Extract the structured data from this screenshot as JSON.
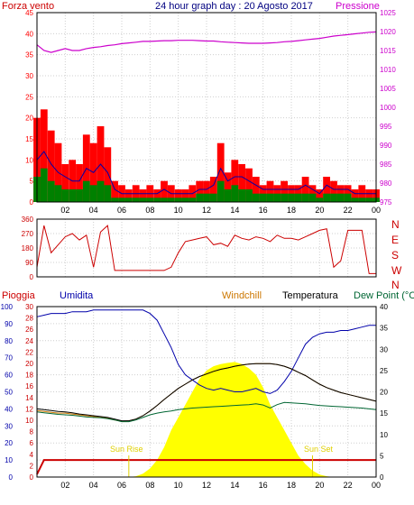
{
  "title": "24 hour graph day : 20 Agosto 2017",
  "colors": {
    "wind_label": "#cc0000",
    "pressure": "#cc00cc",
    "gust": "#ff0000",
    "wind_avg": "#0000aa",
    "wind_green": "#008000",
    "direction": "#cc0000",
    "rain": "#cc0000",
    "humidity": "#0000aa",
    "windchill": "#cc7700",
    "temperature": "#000000",
    "dewpoint": "#006633",
    "solar": "#ffff00",
    "sun_label": "#e0d000",
    "grid": "#cfcfcf"
  },
  "hours_ticks": [
    "02",
    "04",
    "06",
    "08",
    "10",
    "12",
    "14",
    "16",
    "18",
    "20",
    "22",
    "00"
  ],
  "chart_data": [
    {
      "type": "line",
      "id": "wind",
      "title": "24 hour graph day : 20 Agosto 2017",
      "left_axis_label": "Forza vento",
      "right_axis_label": "Pressione",
      "ylim_left": [
        0,
        45
      ],
      "left_ticks": [
        0,
        5,
        10,
        15,
        20,
        25,
        30,
        35,
        40,
        45
      ],
      "ylim_right": [
        975,
        1025
      ],
      "right_ticks": [
        975,
        980,
        985,
        990,
        995,
        1000,
        1005,
        1010,
        1015,
        1020,
        1025
      ],
      "grid": true,
      "x_hours": [
        0,
        0.5,
        1,
        1.5,
        2,
        2.5,
        3,
        3.5,
        4,
        4.5,
        5,
        5.5,
        6,
        6.5,
        7,
        7.5,
        8,
        8.5,
        9,
        9.5,
        10,
        10.5,
        11,
        11.5,
        12,
        12.5,
        13,
        13.5,
        14,
        14.5,
        15,
        15.5,
        16,
        16.5,
        17,
        17.5,
        18,
        18.5,
        19,
        19.5,
        20,
        20.5,
        21,
        21.5,
        22,
        22.5,
        23,
        23.5,
        24
      ],
      "series": [
        {
          "name": "Pressione",
          "axis": "right",
          "values": [
            1016.5,
            1015,
            1014.5,
            1015,
            1015.5,
            1015,
            1015,
            1015.5,
            1015.8,
            1016,
            1016.3,
            1016.5,
            1016.8,
            1017,
            1017.2,
            1017.4,
            1017.4,
            1017.5,
            1017.6,
            1017.6,
            1017.7,
            1017.7,
            1017.7,
            1017.6,
            1017.5,
            1017.5,
            1017.3,
            1017.2,
            1017.1,
            1017,
            1016.9,
            1016.9,
            1016.9,
            1017,
            1017.1,
            1017.3,
            1017.4,
            1017.6,
            1017.8,
            1018,
            1018.2,
            1018.5,
            1018.8,
            1019,
            1019.2,
            1019.4,
            1019.6,
            1019.8,
            1019.9
          ]
        },
        {
          "values": [
            20,
            22,
            17,
            14,
            9,
            10,
            9,
            16,
            14,
            18,
            13,
            5,
            4,
            3,
            4,
            3,
            4,
            3,
            5,
            4,
            3,
            3,
            4,
            5,
            5,
            6,
            14,
            7,
            10,
            9,
            8,
            6,
            4,
            5,
            4,
            5,
            4,
            4,
            6,
            4,
            3,
            6,
            5,
            4,
            4,
            3,
            4,
            3,
            3
          ]
        },
        {
          "values": [
            10,
            12,
            9,
            7,
            6,
            5,
            5,
            8,
            7,
            9,
            7,
            3,
            2,
            2,
            2,
            2,
            2,
            2,
            3,
            2,
            2,
            2,
            2,
            3,
            3,
            4,
            8,
            5,
            6,
            6,
            5,
            4,
            3,
            3,
            3,
            3,
            3,
            3,
            4,
            3,
            2,
            4,
            3,
            3,
            3,
            2,
            2,
            2,
            2
          ]
        },
        {
          "values": [
            6,
            8,
            5,
            4,
            3,
            3,
            3,
            5,
            4,
            5,
            4,
            1,
            1,
            1,
            1,
            1,
            1,
            1,
            1,
            1,
            1,
            1,
            1,
            2,
            2,
            2,
            5,
            3,
            4,
            3,
            3,
            2,
            2,
            2,
            2,
            2,
            2,
            2,
            2,
            2,
            1,
            2,
            2,
            2,
            2,
            1,
            1,
            1,
            1
          ]
        }
      ]
    },
    {
      "type": "line",
      "id": "direction",
      "right_axis_label": "N W S E N",
      "ylim": [
        0,
        360
      ],
      "left_ticks": [
        0,
        90,
        180,
        270,
        360
      ],
      "compass_letters": [
        "N",
        "W",
        "S",
        "E",
        "N"
      ],
      "grid": true,
      "x_hours": [
        0,
        0.5,
        1,
        1.5,
        2,
        2.5,
        3,
        3.5,
        4,
        4.5,
        5,
        5.5,
        6,
        6.5,
        7,
        7.5,
        8,
        8.5,
        9,
        9.5,
        10,
        10.5,
        11,
        11.5,
        12,
        12.5,
        13,
        13.5,
        14,
        14.5,
        15,
        15.5,
        16,
        16.5,
        17,
        17.5,
        18,
        18.5,
        19,
        19.5,
        20,
        20.5,
        21,
        21.5,
        22,
        22.5,
        23,
        23.5,
        24
      ],
      "series": [
        {
          "values": [
            60,
            320,
            150,
            200,
            250,
            270,
            230,
            260,
            60,
            280,
            320,
            40,
            40,
            40,
            40,
            40,
            40,
            40,
            40,
            60,
            150,
            220,
            230,
            240,
            250,
            200,
            210,
            190,
            260,
            240,
            230,
            250,
            240,
            220,
            260,
            240,
            240,
            230,
            250,
            270,
            290,
            300,
            60,
            100,
            290,
            290,
            290,
            20,
            20
          ]
        }
      ]
    },
    {
      "type": "line",
      "id": "climate",
      "left_axis_labels": [
        "Pioggia",
        "Umidita"
      ],
      "series_labels": [
        "Windchill",
        "Temperatura",
        "Dew Point (°C"
      ],
      "ylim_humidity": [
        0,
        100
      ],
      "humidity_ticks": [
        0,
        10,
        20,
        30,
        40,
        50,
        60,
        70,
        80,
        90,
        100
      ],
      "ylim_rain": [
        0,
        30
      ],
      "rain_ticks": [
        0,
        2,
        4,
        6,
        8,
        10,
        12,
        14,
        16,
        18,
        20,
        22,
        24,
        26,
        28,
        30
      ],
      "ylim_temp": [
        0,
        40
      ],
      "temp_ticks": [
        0,
        5,
        10,
        15,
        20,
        25,
        30,
        35,
        40
      ],
      "annotations": {
        "sunrise": "Sun Rise",
        "sunset": "Sun Set"
      },
      "sunrise_hour": 6.5,
      "sunset_hour": 19.5,
      "grid": true,
      "x_hours": [
        0,
        0.5,
        1,
        1.5,
        2,
        2.5,
        3,
        3.5,
        4,
        4.5,
        5,
        5.5,
        6,
        6.5,
        7,
        7.5,
        8,
        8.5,
        9,
        9.5,
        10,
        10.5,
        11,
        11.5,
        12,
        12.5,
        13,
        13.5,
        14,
        14.5,
        15,
        15.5,
        16,
        16.5,
        17,
        17.5,
        18,
        18.5,
        19,
        19.5,
        20,
        20.5,
        21,
        21.5,
        22,
        22.5,
        23,
        23.5,
        24
      ],
      "series": [
        {
          "name": "Umidita",
          "values": [
            94,
            95,
            96,
            96,
            96,
            97,
            97,
            97,
            98,
            98,
            98,
            98,
            98,
            98,
            98,
            98,
            96,
            92,
            84,
            76,
            66,
            60,
            57,
            54,
            52,
            51,
            52,
            51,
            50,
            50,
            51,
            52,
            50,
            49,
            51,
            56,
            62,
            70,
            78,
            82,
            84,
            85,
            85,
            86,
            86,
            87,
            88,
            89,
            89
          ]
        },
        {
          "name": "Temperatura",
          "values": [
            16,
            15.8,
            15.6,
            15.4,
            15.3,
            15.1,
            14.8,
            14.6,
            14.4,
            14.2,
            14.0,
            13.6,
            13.2,
            13.2,
            13.6,
            14.4,
            15.5,
            16.8,
            18.2,
            19.5,
            20.8,
            21.8,
            22.8,
            23.6,
            24.2,
            24.8,
            25.3,
            25.6,
            26.0,
            26.3,
            26.5,
            26.6,
            26.6,
            26.6,
            26.4,
            26.0,
            25.4,
            24.6,
            23.8,
            22.8,
            21.8,
            21.0,
            20.4,
            19.8,
            19.4,
            19.0,
            18.6,
            18.2,
            17.8
          ]
        },
        {
          "name": "Windchill",
          "values": [
            15.6,
            15.4,
            15.2,
            15.0,
            15.0,
            14.8,
            14.6,
            14.4,
            14.2,
            14.0,
            13.8,
            13.4,
            13.1,
            13.2,
            13.6,
            14.4,
            15.5,
            16.8,
            18.2,
            19.5,
            20.8,
            21.8,
            22.8,
            23.6,
            24.2,
            24.8,
            25.3,
            25.6,
            26.0,
            26.3,
            26.5,
            26.6,
            26.6,
            26.6,
            26.4,
            26.0,
            25.4,
            24.6,
            23.8,
            22.8,
            21.8,
            21.0,
            20.4,
            19.8,
            19.4,
            19.0,
            18.6,
            18.2,
            17.8
          ]
        },
        {
          "name": "Dew Point",
          "values": [
            15.3,
            15.1,
            14.9,
            14.7,
            14.6,
            14.5,
            14.3,
            14.1,
            14.0,
            13.9,
            13.7,
            13.4,
            13.0,
            13.0,
            13.4,
            14.0,
            14.6,
            15.0,
            15.3,
            15.5,
            15.8,
            16.0,
            16.2,
            16.3,
            16.4,
            16.5,
            16.6,
            16.7,
            16.8,
            16.9,
            17.0,
            17.2,
            16.9,
            16.2,
            17.0,
            17.5,
            17.4,
            17.3,
            17.2,
            17.0,
            16.8,
            16.7,
            16.6,
            16.5,
            16.4,
            16.3,
            16.2,
            16.0,
            15.8
          ]
        },
        {
          "name": "Solar",
          "values": [
            0,
            0,
            0,
            0,
            0,
            0,
            0,
            0,
            0,
            0,
            0,
            0,
            0,
            0,
            0.2,
            0.8,
            2,
            4,
            7,
            11,
            14,
            17,
            20,
            23,
            25,
            26,
            26.5,
            26.8,
            27,
            26.5,
            25.5,
            24,
            21,
            17,
            14,
            11,
            8,
            5,
            3,
            1.5,
            0.6,
            0.2,
            0,
            0,
            0,
            0,
            0,
            0,
            0
          ]
        },
        {
          "name": "Pioggia",
          "values": [
            0.5,
            3,
            3,
            3,
            3,
            3,
            3,
            3,
            3,
            3,
            3,
            3,
            3,
            3,
            3,
            3,
            3,
            3,
            3,
            3,
            3,
            3,
            3,
            3,
            3,
            3,
            3,
            3,
            3,
            3,
            3,
            3,
            3,
            3,
            3,
            3,
            3,
            3,
            3,
            3,
            3,
            3,
            3,
            3,
            3,
            3,
            3,
            3,
            3
          ]
        }
      ]
    }
  ]
}
